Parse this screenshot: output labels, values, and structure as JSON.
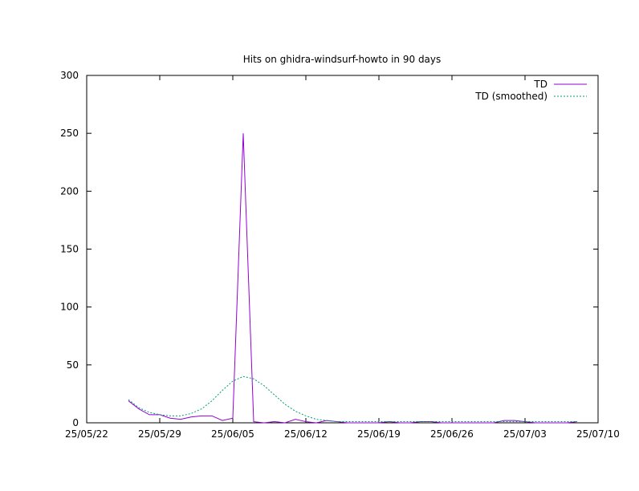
{
  "chart_data": {
    "type": "line",
    "title": "Hits on ghidra-windsurf-howto in 90 days",
    "xlabel": "",
    "ylabel": "",
    "xlim": [
      "2025-05-22",
      "2025-07-10"
    ],
    "ylim": [
      0,
      300
    ],
    "x_ticks": [
      "25/05/22",
      "25/05/29",
      "25/06/05",
      "25/06/12",
      "25/06/19",
      "25/06/26",
      "25/07/03",
      "25/07/10"
    ],
    "y_ticks": [
      "0",
      "50",
      "100",
      "150",
      "200",
      "250",
      "300"
    ],
    "grid": false,
    "legend_position": "top-right",
    "series": [
      {
        "name": "TD",
        "color": "#9400d3",
        "points": [
          [
            "2025-05-26",
            19
          ],
          [
            "2025-05-27",
            12
          ],
          [
            "2025-05-28",
            7
          ],
          [
            "2025-05-29",
            7
          ],
          [
            "2025-05-30",
            4
          ],
          [
            "2025-05-31",
            3
          ],
          [
            "2025-06-01",
            5
          ],
          [
            "2025-06-02",
            6
          ],
          [
            "2025-06-03",
            6
          ],
          [
            "2025-06-04",
            2
          ],
          [
            "2025-06-05",
            4
          ],
          [
            "2025-06-06",
            250
          ],
          [
            "2025-06-07",
            1
          ],
          [
            "2025-06-08",
            0
          ],
          [
            "2025-06-09",
            1
          ],
          [
            "2025-06-10",
            0
          ],
          [
            "2025-06-11",
            3
          ],
          [
            "2025-06-12",
            1
          ],
          [
            "2025-06-13",
            0
          ],
          [
            "2025-06-14",
            2
          ],
          [
            "2025-06-15",
            1
          ],
          [
            "2025-06-16",
            0
          ],
          [
            "2025-06-17",
            0
          ],
          [
            "2025-06-18",
            0
          ],
          [
            "2025-06-19",
            0
          ],
          [
            "2025-06-20",
            1
          ],
          [
            "2025-06-21",
            0
          ],
          [
            "2025-06-22",
            0
          ],
          [
            "2025-06-23",
            1
          ],
          [
            "2025-06-24",
            1
          ],
          [
            "2025-06-25",
            0
          ],
          [
            "2025-06-26",
            0
          ],
          [
            "2025-06-27",
            0
          ],
          [
            "2025-06-28",
            0
          ],
          [
            "2025-06-29",
            0
          ],
          [
            "2025-06-30",
            0
          ],
          [
            "2025-07-01",
            2
          ],
          [
            "2025-07-02",
            2
          ],
          [
            "2025-07-03",
            1
          ],
          [
            "2025-07-04",
            0
          ],
          [
            "2025-07-05",
            0
          ],
          [
            "2025-07-06",
            0
          ],
          [
            "2025-07-07",
            0
          ],
          [
            "2025-07-08",
            1
          ]
        ]
      },
      {
        "name": "TD (smoothed)",
        "color": "#009e73",
        "points": [
          [
            "2025-05-26",
            20
          ],
          [
            "2025-05-27",
            13
          ],
          [
            "2025-05-28",
            9
          ],
          [
            "2025-05-29",
            7
          ],
          [
            "2025-05-30",
            6
          ],
          [
            "2025-05-31",
            6
          ],
          [
            "2025-06-01",
            8
          ],
          [
            "2025-06-02",
            12
          ],
          [
            "2025-06-03",
            19
          ],
          [
            "2025-06-04",
            28
          ],
          [
            "2025-06-05",
            36
          ],
          [
            "2025-06-06",
            40
          ],
          [
            "2025-06-07",
            38
          ],
          [
            "2025-06-08",
            32
          ],
          [
            "2025-06-09",
            24
          ],
          [
            "2025-06-10",
            16
          ],
          [
            "2025-06-11",
            10
          ],
          [
            "2025-06-12",
            6
          ],
          [
            "2025-06-13",
            3
          ],
          [
            "2025-06-14",
            2
          ],
          [
            "2025-06-15",
            1
          ],
          [
            "2025-06-16",
            1
          ],
          [
            "2025-06-17",
            1
          ],
          [
            "2025-06-18",
            1
          ],
          [
            "2025-06-19",
            1
          ],
          [
            "2025-06-20",
            1
          ],
          [
            "2025-06-21",
            1
          ],
          [
            "2025-06-22",
            1
          ],
          [
            "2025-06-23",
            1
          ],
          [
            "2025-06-24",
            1
          ],
          [
            "2025-06-25",
            1
          ],
          [
            "2025-06-26",
            1
          ],
          [
            "2025-06-27",
            1
          ],
          [
            "2025-06-28",
            1
          ],
          [
            "2025-06-29",
            1
          ],
          [
            "2025-06-30",
            1
          ],
          [
            "2025-07-01",
            1
          ],
          [
            "2025-07-02",
            1
          ],
          [
            "2025-07-03",
            1
          ],
          [
            "2025-07-04",
            1
          ],
          [
            "2025-07-05",
            1
          ],
          [
            "2025-07-06",
            1
          ],
          [
            "2025-07-07",
            1
          ],
          [
            "2025-07-08",
            1
          ]
        ]
      }
    ]
  }
}
